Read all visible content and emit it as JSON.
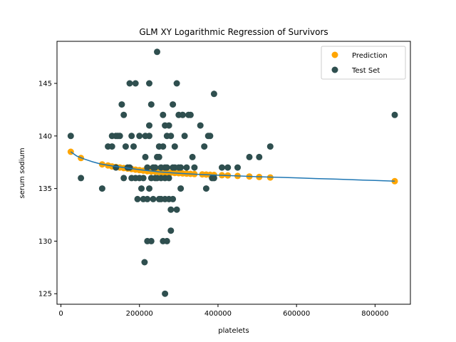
{
  "chart_data": {
    "type": "scatter",
    "title": "GLM XY Logarithmic Regression of Survivors",
    "xlabel": "platelets",
    "ylabel": "serum sodium",
    "xlim": [
      -10000,
      890000
    ],
    "ylim": [
      124,
      149
    ],
    "xticks": [
      0,
      200000,
      400000,
      600000,
      800000
    ],
    "xtick_labels": [
      "0",
      "200000",
      "400000",
      "600000",
      "800000"
    ],
    "yticks": [
      125,
      130,
      135,
      140,
      145
    ],
    "ytick_labels": [
      "125",
      "130",
      "135",
      "140",
      "145"
    ],
    "grid": false,
    "legend_position": "top-right",
    "colors": {
      "prediction": "#ffa500",
      "test_set": "#2f4f4f",
      "fit_line": "#1f77b4"
    },
    "series": [
      {
        "name": "Prediction",
        "kind": "scatter",
        "x": [
          25000,
          51000,
          105000,
          120000,
          130000,
          140000,
          150000,
          160000,
          170000,
          180000,
          190000,
          200000,
          210000,
          220000,
          230000,
          240000,
          250000,
          260000,
          270000,
          280000,
          290000,
          300000,
          310000,
          320000,
          330000,
          340000,
          360000,
          370000,
          380000,
          390000,
          410000,
          425000,
          450000,
          480000,
          505000,
          533000,
          850000
        ],
        "y": [
          138.5,
          137.9,
          137.3,
          137.2,
          137.1,
          137.05,
          137.0,
          136.95,
          136.9,
          136.85,
          136.8,
          136.75,
          136.7,
          136.65,
          136.62,
          136.6,
          136.57,
          136.55,
          136.53,
          136.5,
          136.48,
          136.46,
          136.44,
          136.42,
          136.4,
          136.38,
          136.35,
          136.33,
          136.31,
          136.3,
          136.27,
          136.25,
          136.2,
          136.15,
          136.1,
          136.05,
          135.7
        ]
      },
      {
        "name": "Test Set",
        "kind": "scatter",
        "x": [
          25000,
          51000,
          105000,
          120000,
          130000,
          130000,
          140000,
          140000,
          145000,
          150000,
          155000,
          160000,
          160000,
          165000,
          170000,
          175000,
          175000,
          180000,
          180000,
          185000,
          190000,
          190000,
          195000,
          200000,
          200000,
          205000,
          210000,
          210000,
          215000,
          215000,
          220000,
          220000,
          220000,
          225000,
          225000,
          225000,
          225000,
          230000,
          230000,
          230000,
          235000,
          235000,
          240000,
          240000,
          245000,
          245000,
          245000,
          250000,
          250000,
          250000,
          255000,
          255000,
          255000,
          260000,
          260000,
          260000,
          265000,
          265000,
          265000,
          265000,
          270000,
          270000,
          270000,
          275000,
          275000,
          275000,
          280000,
          280000,
          280000,
          285000,
          285000,
          285000,
          290000,
          290000,
          295000,
          295000,
          300000,
          300000,
          305000,
          305000,
          310000,
          315000,
          320000,
          325000,
          330000,
          335000,
          340000,
          355000,
          365000,
          370000,
          375000,
          380000,
          385000,
          390000,
          390000,
          410000,
          425000,
          450000,
          480000,
          505000,
          533000,
          850000,
          213000,
          265000
        ],
        "y": [
          140,
          136,
          135,
          139,
          140,
          139,
          140,
          137,
          140,
          140,
          143,
          142,
          136,
          139,
          137,
          145,
          137,
          136,
          140,
          139,
          145,
          136,
          134,
          140,
          136,
          135,
          134,
          136,
          138,
          140,
          130,
          134,
          137,
          135,
          140,
          141,
          145,
          143,
          136,
          130,
          137,
          134,
          136,
          137,
          148,
          138,
          136,
          139,
          138,
          134,
          137,
          134,
          136,
          139,
          142,
          130,
          141,
          136,
          137,
          134,
          140,
          130,
          137,
          141,
          134,
          136,
          140,
          131,
          133,
          137,
          143,
          134,
          137,
          139,
          145,
          133,
          142,
          137,
          137,
          135,
          142,
          140,
          137,
          142,
          142,
          138,
          137,
          141,
          139,
          135,
          140,
          140,
          136,
          144,
          136,
          137,
          137,
          137,
          138,
          138,
          139,
          142,
          128,
          125
        ]
      },
      {
        "name": "",
        "kind": "line",
        "x": [
          25000,
          40000,
          60000,
          80000,
          100000,
          130000,
          160000,
          200000,
          250000,
          300000,
          350000,
          400000,
          450000,
          500000,
          550000,
          600000,
          650000,
          700000,
          750000,
          800000,
          850000
        ],
        "y": [
          138.5,
          138.1,
          137.8,
          137.55,
          137.35,
          137.15,
          137.0,
          136.8,
          136.58,
          136.45,
          136.35,
          136.27,
          136.2,
          136.13,
          136.07,
          136.02,
          135.95,
          135.9,
          135.83,
          135.77,
          135.7
        ]
      }
    ],
    "legend": [
      "Prediction",
      "Test Set"
    ]
  }
}
